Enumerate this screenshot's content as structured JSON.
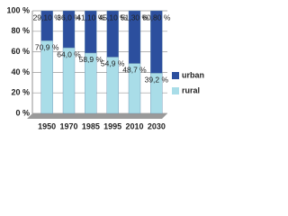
{
  "chart_data": {
    "type": "stacked_bar",
    "categories": [
      "1950",
      "1970",
      "1985",
      "1995",
      "2010",
      "2030"
    ],
    "series": [
      {
        "name": "rural",
        "color": "#a9dde8",
        "values": [
          70.9,
          64.0,
          58.9,
          54.9,
          48.7,
          39.2
        ],
        "value_labels": [
          "70,9 %",
          "64,0 %",
          "58,9 %",
          "54,9 %",
          "48,7 %",
          "39,2 %"
        ]
      },
      {
        "name": "urban",
        "color": "#2c4f9e",
        "values": [
          29.1,
          36.0,
          41.1,
          45.1,
          51.3,
          60.8
        ],
        "value_labels": [
          "29,10 %",
          "36,0 %",
          "41,10 %",
          "45,10 %",
          "51,30 %",
          "60,80 %"
        ]
      }
    ],
    "ylim": [
      0,
      100
    ],
    "yticks": [
      {
        "value": 0,
        "label": "0 %"
      },
      {
        "value": 20,
        "label": "20 %"
      },
      {
        "value": 40,
        "label": "40 %"
      },
      {
        "value": 60,
        "label": "60 %"
      },
      {
        "value": 80,
        "label": "80 %"
      },
      {
        "value": 100,
        "label": "100 %"
      }
    ],
    "grid": true,
    "legend": "right"
  }
}
